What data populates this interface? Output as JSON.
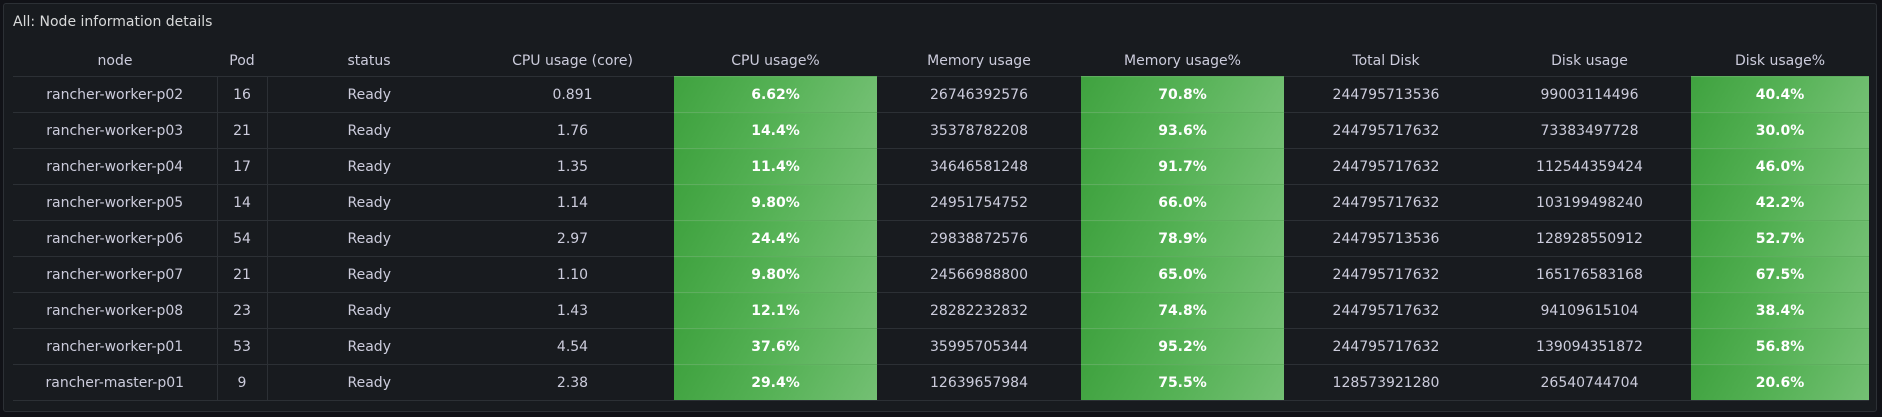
{
  "panel": {
    "title": "All: Node information details"
  },
  "table": {
    "columns": [
      "node",
      "Pod",
      "status",
      "CPU usage (core)",
      "CPU usage%",
      "Memory usage",
      "Memory usage%",
      "Total Disk",
      "Disk usage",
      "Disk usage%"
    ],
    "rows": [
      [
        "rancher-worker-p02",
        "16",
        "Ready",
        "0.891",
        "6.62%",
        "26746392576",
        "70.8%",
        "244795713536",
        "99003114496",
        "40.4%"
      ],
      [
        "rancher-worker-p03",
        "21",
        "Ready",
        "1.76",
        "14.4%",
        "35378782208",
        "93.6%",
        "244795717632",
        "73383497728",
        "30.0%"
      ],
      [
        "rancher-worker-p04",
        "17",
        "Ready",
        "1.35",
        "11.4%",
        "34646581248",
        "91.7%",
        "244795717632",
        "112544359424",
        "46.0%"
      ],
      [
        "rancher-worker-p05",
        "14",
        "Ready",
        "1.14",
        "9.80%",
        "24951754752",
        "66.0%",
        "244795717632",
        "103199498240",
        "42.2%"
      ],
      [
        "rancher-worker-p06",
        "54",
        "Ready",
        "2.97",
        "24.4%",
        "29838872576",
        "78.9%",
        "244795713536",
        "128928550912",
        "52.7%"
      ],
      [
        "rancher-worker-p07",
        "21",
        "Ready",
        "1.10",
        "9.80%",
        "24566988800",
        "65.0%",
        "244795717632",
        "165176583168",
        "67.5%"
      ],
      [
        "rancher-worker-p08",
        "23",
        "Ready",
        "1.43",
        "12.1%",
        "28282232832",
        "74.8%",
        "244795717632",
        "94109615104",
        "38.4%"
      ],
      [
        "rancher-worker-p01",
        "53",
        "Ready",
        "4.54",
        "37.6%",
        "35995705344",
        "95.2%",
        "244795717632",
        "139094351872",
        "56.8%"
      ],
      [
        "rancher-master-p01",
        "9",
        "Ready",
        "2.38",
        "29.4%",
        "12639657984",
        "75.5%",
        "128573921280",
        "26540744704",
        "20.6%"
      ]
    ]
  },
  "colors": {
    "cell_green": "#56b256",
    "panel_bg": "#181b1f",
    "page_bg": "#111217",
    "text": "#ccccdc"
  }
}
